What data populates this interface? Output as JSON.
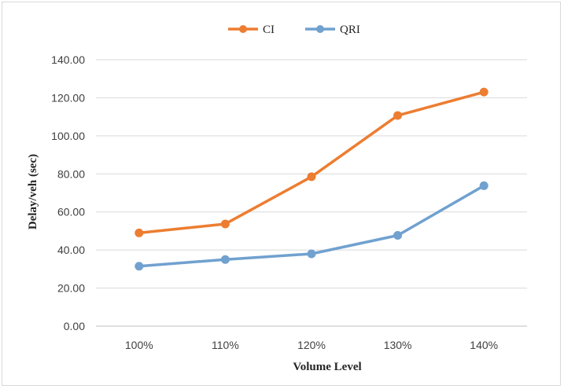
{
  "chart_data": {
    "type": "line",
    "title": "",
    "xlabel": "Volume Level",
    "ylabel": "Delay/veh (sec)",
    "categories": [
      "100%",
      "110%",
      "120%",
      "130%",
      "140%"
    ],
    "ylim": [
      0,
      140
    ],
    "yticks": [
      "0.00",
      "20.00",
      "40.00",
      "60.00",
      "80.00",
      "100.00",
      "120.00",
      "140.00"
    ],
    "grid": true,
    "legend_position": "top-center",
    "series": [
      {
        "name": "CI",
        "color": "#ed7d31",
        "values": [
          49.0,
          53.7,
          78.5,
          110.7,
          123.0
        ]
      },
      {
        "name": "QRI",
        "color": "#70a1cf",
        "values": [
          31.5,
          35.0,
          38.0,
          47.7,
          73.8
        ]
      }
    ]
  }
}
